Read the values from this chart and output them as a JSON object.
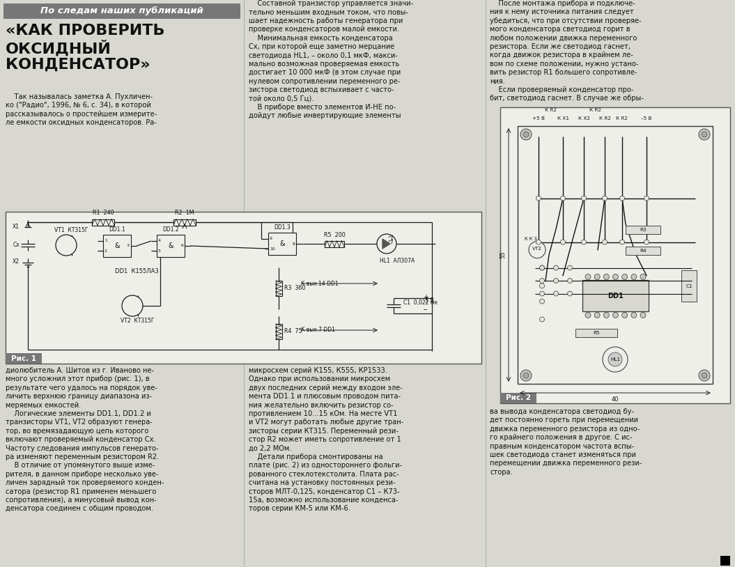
{
  "page_bg": "#d8d8d0",
  "banner_bg": "#808080",
  "banner_text": "По следам наших публикаций",
  "main_title": "«КАК ПРОВЕРИТЬ\nОКСИДНЫЙ\nКОНДЕНСАТОР»",
  "col1_intro": "    Так называлась заметка А. Пухличен-\nко (\"Радио\", 1996, № 6, с. 34), в которой\nрассказывалось о простейшем измерите-\nле емкости оксидных конденсаторов. Ра-",
  "col1_body": "диолюбитель А. Шитов из г. Иваново не-\nмного усложнил этот прибор (рис. 1), в\nрезультате чего удалось на порядок уве-\nличить верхнюю границу диапазона из-\nмеряемых емкостей.\n    Логические элементы DD1.1, DD1.2 и\nтранзисторы VT1, VT2 образуют генера-\nтор, во времязадающую цепь которого\nвключают проверяемый конденсатор Сх.\nЧастоту следования импульсов генерато-\nра изменяют переменным резистором R2.\n    В отличие от упомянутого выше изме-\nрителя, в данном приборе несколько уве-\nличен зарядный ток проверяемого конден-\nсатора (резистор R1 применен меньшего\nсопротивления), а минусовый вывод кон-\nденсатора соединен с общим проводом.",
  "col2_top": "    Составной транзистор управляется значи-\nтельно меньшим входным током, что повы-\nшает надежность работы генератора при\nпроверке конденсаторов малой емкости.\n    Минимальная емкость конденсатора\nСх, при которой еще заметно мерцание\nсветодиода HL1, – около 0,1 мкФ, макси-\nмально возможная проверяемая емкость\nдостигает 10 000 мкФ (в этом случае при\nнулевом сопротивлении переменного ре-\nзистора светодиод вспыхивает с часто-\nтой около 0,5 Гц).\n    В приборе вместо элементов И-НЕ по-\nдойдут любые инвертирующие элементы",
  "col2_bot": "микросхем серий К155, К555, КР1533.\nОднако при использовании микросхем\nдвух последних серий между входом эле-\nмента DD1.1 и плюсовым проводом пита-\nния желательно включить резистор со-\nпротивлением 10...15 кОм. На месте VT1\nи VT2 могут работать любые другие тран-\nзисторы серии КТ315. Переменный рези-\nстор R2 может иметь сопротивление от 1\nдо 2,2 МОм.\n    Детали прибора смонтированы на\nплате (рис. 2) из одностороннего фольги-\nрованного стеклотекстолита. Плата рас-\nсчитана на установку постоянных рези-\nсторов МЛТ-0,125, конденсатор С1 – К73-\n15а, возможно использование конденса-\nторов серии КМ-5 или КМ-6.",
  "col3_top": "    После монтажа прибора и подключе-\nния к нему источника питания следует\nубедиться, что при отсутствии проверяе-\nмого конденсатора светодиод горит в\nлюбом положении движка переменного\nрезистора. Если же светодиод гаснет,\nкогда движок резистора в крайнем ле-\nвом по схеме положении, нужно устано-\nвить резистор R1 большего сопротивле-\nния.\n    Если проверяемый конденсатор про-\nбит, светодиод гаснет. В случае же обры-",
  "col3_bot": "ва вывода конденсатора светодиод бу-\nдет постоянно гореть при перемещении\nдвижка переменного резистора из одно-\nго крайнего положения в другое. С ис-\nправным конденсатором частота вспы-\nшек светодиода станет изменяться при\nперемещении движка переменного рези-\nстора.",
  "fig1_label": "Рис. 1",
  "fig2_label": "Рис. 2",
  "tc": "#111111",
  "circuit_bg": "#efefea",
  "pcb_bg": "#efefea"
}
